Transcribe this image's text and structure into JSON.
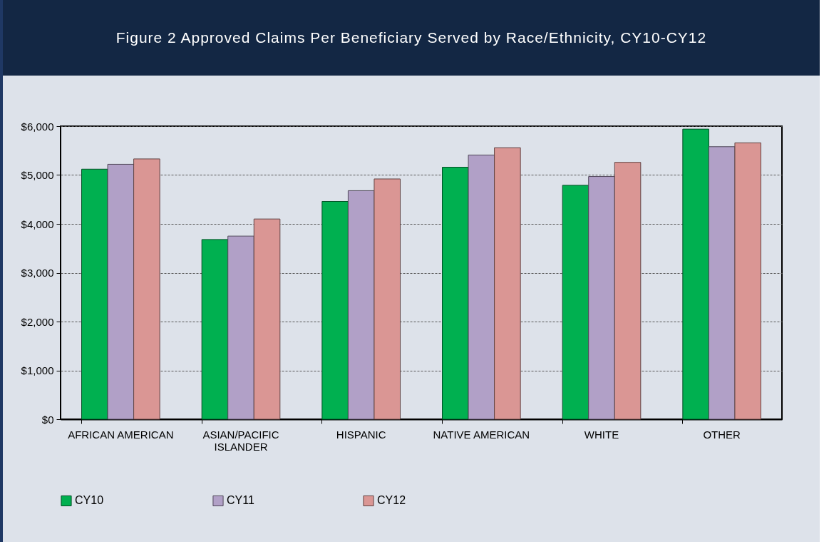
{
  "chart_data": {
    "type": "bar",
    "title": "Figure 2 Approved Claims Per Beneficiary Served by Race/Ethnicity, CY10-CY12",
    "categories": [
      "AFRICAN AMERICAN",
      "ASIAN/PACIFIC ISLANDER",
      "HISPANIC",
      "NATIVE AMERICAN",
      "WHITE",
      "OTHER"
    ],
    "series": [
      {
        "name": "CY10",
        "color": "#00b050",
        "values": [
          5120,
          3680,
          4460,
          5160,
          4790,
          5940
        ]
      },
      {
        "name": "CY11",
        "color": "#b1a0c7",
        "values": [
          5220,
          3750,
          4680,
          5410,
          4970,
          5580
        ]
      },
      {
        "name": "CY12",
        "color": "#da9694",
        "values": [
          5330,
          4100,
          4920,
          5560,
          5260,
          5660
        ]
      }
    ],
    "ylim": [
      0,
      6000
    ],
    "yticks": [
      {
        "value": 0,
        "label": "$0"
      },
      {
        "value": 1000,
        "label": "$1,000"
      },
      {
        "value": 2000,
        "label": "$2,000"
      },
      {
        "value": 3000,
        "label": "$3,000"
      },
      {
        "value": 4000,
        "label": "$4,000"
      },
      {
        "value": 5000,
        "label": "$5,000"
      },
      {
        "value": 6000,
        "label": "$6,000"
      }
    ],
    "grid": "y",
    "legend": "bottom"
  }
}
